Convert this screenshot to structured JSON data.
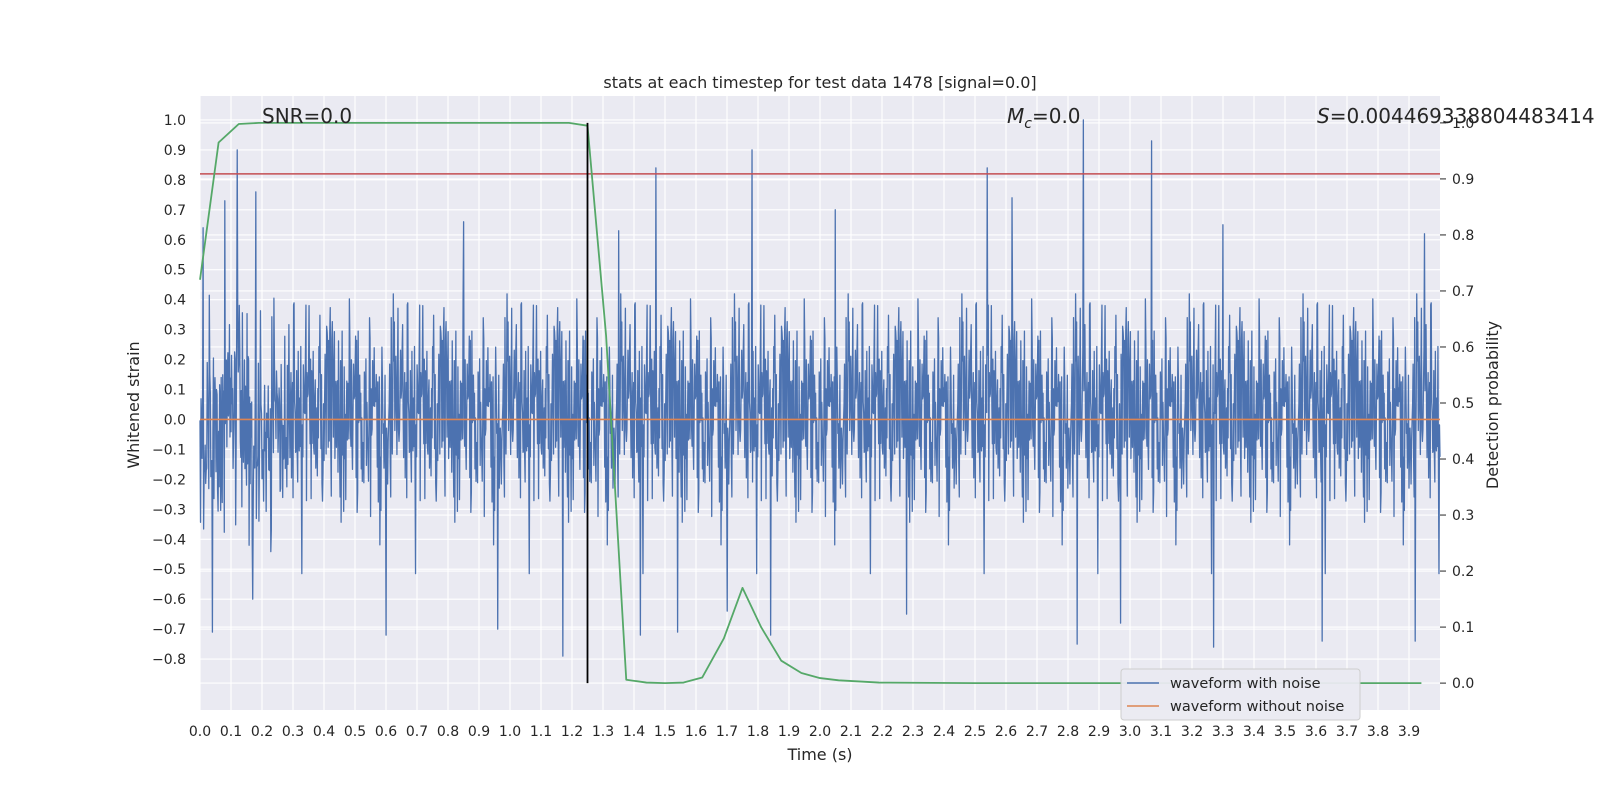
{
  "chart_data": {
    "type": "line",
    "title": "stats at each timestep for test data 1478 [signal=0.0]",
    "xlabel": "Time (s)",
    "ylabel": "Whitened strain",
    "y2label": "Detection probability",
    "xlim": [
      0.0,
      4.0
    ],
    "ylim": [
      -0.97,
      1.08
    ],
    "y2lim": [
      -0.048,
      1.048
    ],
    "x_ticks": [
      "0.0",
      "0.1",
      "0.2",
      "0.3",
      "0.4",
      "0.5",
      "0.6",
      "0.7",
      "0.8",
      "0.9",
      "1.0",
      "1.1",
      "1.2",
      "1.3",
      "1.4",
      "1.5",
      "1.6",
      "1.7",
      "1.8",
      "1.9",
      "2.0",
      "2.1",
      "2.2",
      "2.3",
      "2.4",
      "2.5",
      "2.6",
      "2.7",
      "2.8",
      "2.9",
      "3.0",
      "3.1",
      "3.2",
      "3.3",
      "3.4",
      "3.5",
      "3.6",
      "3.7",
      "3.8",
      "3.9"
    ],
    "y_ticks": [
      "-0.8",
      "-0.7",
      "-0.6",
      "-0.5",
      "-0.4",
      "-0.3",
      "-0.2",
      "-0.1",
      "0.0",
      "0.1",
      "0.2",
      "0.3",
      "0.4",
      "0.5",
      "0.6",
      "0.7",
      "0.8",
      "0.9",
      "1.0"
    ],
    "y2_ticks": [
      "0.0",
      "0.1",
      "0.2",
      "0.3",
      "0.4",
      "0.5",
      "0.6",
      "0.7",
      "0.8",
      "0.9",
      "1.0"
    ],
    "grid": true,
    "legend_placement": "lower-right",
    "annotations": {
      "snr": "SNR=0.0",
      "mc_symbol": "M",
      "mc_sub": "c",
      "mc_value": "=0.0",
      "s_symbol": "S",
      "s_value": "=0.004469338804483414"
    },
    "marker_time": 1.25,
    "threshold_y": 0.82,
    "noise_summary": {
      "center": 0.0,
      "typical_range": [
        -0.45,
        0.45
      ],
      "max": 1.0,
      "min": -0.8,
      "samples_shown": 2400
    },
    "noise_peaks": [
      {
        "x": 0.01,
        "y": 0.64
      },
      {
        "x": 0.04,
        "y": -0.71
      },
      {
        "x": 0.08,
        "y": 0.73
      },
      {
        "x": 0.12,
        "y": 0.9
      },
      {
        "x": 0.17,
        "y": -0.6
      },
      {
        "x": 0.18,
        "y": 0.76
      },
      {
        "x": 0.6,
        "y": -0.72
      },
      {
        "x": 0.85,
        "y": 0.66
      },
      {
        "x": 0.96,
        "y": -0.7
      },
      {
        "x": 1.17,
        "y": -0.79
      },
      {
        "x": 1.35,
        "y": 0.63
      },
      {
        "x": 1.42,
        "y": -0.72
      },
      {
        "x": 1.47,
        "y": 0.84
      },
      {
        "x": 1.54,
        "y": -0.71
      },
      {
        "x": 1.7,
        "y": -0.64
      },
      {
        "x": 1.78,
        "y": 0.9
      },
      {
        "x": 1.84,
        "y": -0.72
      },
      {
        "x": 2.05,
        "y": 0.7
      },
      {
        "x": 2.28,
        "y": -0.65
      },
      {
        "x": 2.54,
        "y": 0.84
      },
      {
        "x": 2.62,
        "y": 0.74
      },
      {
        "x": 2.83,
        "y": -0.75
      },
      {
        "x": 2.85,
        "y": 1.0
      },
      {
        "x": 2.97,
        "y": -0.68
      },
      {
        "x": 3.07,
        "y": 0.93
      },
      {
        "x": 3.27,
        "y": -0.76
      },
      {
        "x": 3.3,
        "y": 0.65
      },
      {
        "x": 3.62,
        "y": -0.74
      },
      {
        "x": 3.92,
        "y": -0.74
      },
      {
        "x": 3.95,
        "y": 0.62
      }
    ],
    "series": [
      {
        "name": "waveform with noise",
        "color": "#4c72b0",
        "axis": "left",
        "kind": "noise"
      },
      {
        "name": "waveform without noise",
        "color": "#dd8452",
        "axis": "left",
        "values": [
          [
            0.0,
            0.0
          ],
          [
            4.0,
            0.0
          ]
        ]
      },
      {
        "color": "#55a868",
        "axis": "right",
        "values": [
          [
            0.0,
            0.72
          ],
          [
            0.06,
            0.965
          ],
          [
            0.125,
            0.998
          ],
          [
            0.19,
            1.0
          ],
          [
            0.5,
            1.0
          ],
          [
            1.0,
            1.0
          ],
          [
            1.19,
            1.0
          ],
          [
            1.25,
            0.995
          ],
          [
            1.31,
            0.62
          ],
          [
            1.375,
            0.006
          ],
          [
            1.44,
            0.001
          ],
          [
            1.5,
            0.0
          ],
          [
            1.56,
            0.001
          ],
          [
            1.62,
            0.01
          ],
          [
            1.69,
            0.08
          ],
          [
            1.75,
            0.17
          ],
          [
            1.81,
            0.1
          ],
          [
            1.875,
            0.04
          ],
          [
            1.94,
            0.018
          ],
          [
            2.0,
            0.009
          ],
          [
            2.06,
            0.005
          ],
          [
            2.125,
            0.003
          ],
          [
            2.19,
            0.001
          ],
          [
            2.5,
            0.0
          ],
          [
            3.0,
            0.0
          ],
          [
            3.5,
            0.0
          ],
          [
            3.94,
            0.0
          ]
        ]
      }
    ],
    "colors": {
      "threshold": "#c44e52",
      "marker": "#000000",
      "grid": "#ffffff",
      "plot_bg": "#eaeaf2",
      "legend_bg": "#eaeaf2"
    }
  }
}
